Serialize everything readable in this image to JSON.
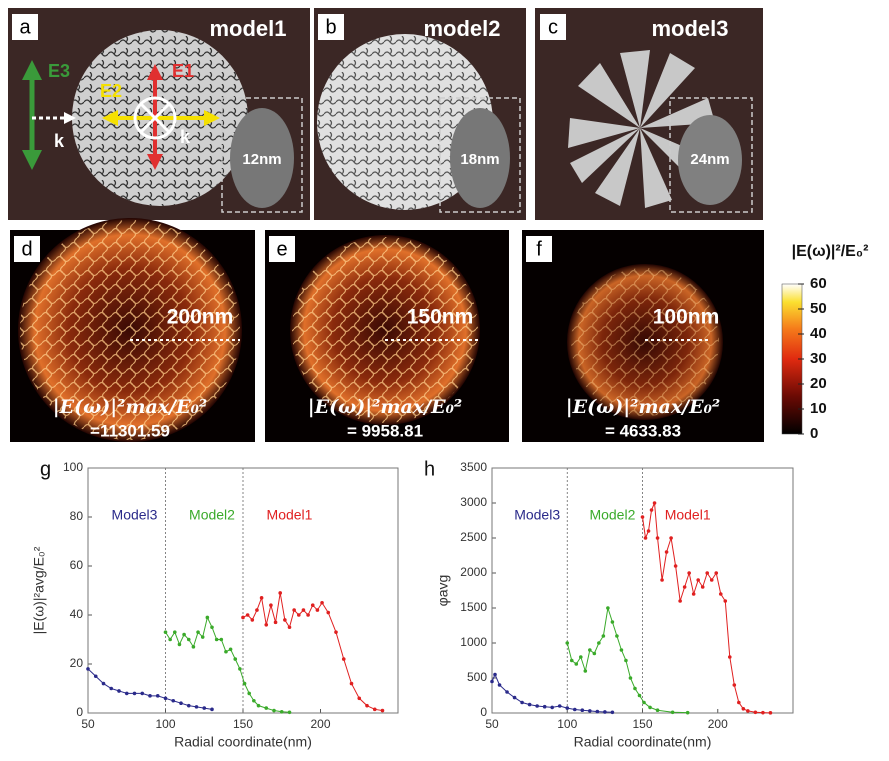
{
  "panels": [
    {
      "label": "a",
      "title": "model1",
      "inset": "12nm"
    },
    {
      "label": "b",
      "title": "model2",
      "inset": "18nm"
    },
    {
      "label": "c",
      "title": "model3",
      "inset": "24nm"
    }
  ],
  "panel_a_annotations": {
    "e3": "E3",
    "e1": "E1",
    "e2": "E2",
    "k_in": "k",
    "k_out": "k"
  },
  "field_panels": [
    {
      "label": "d",
      "scale": "200nm",
      "formula": "|E(ω)|²max/E₀²",
      "enhancement": "=11301.59"
    },
    {
      "label": "e",
      "scale": "150nm",
      "formula": "|E(ω)|²max/E₀²",
      "enhancement": "= 9958.81"
    },
    {
      "label": "f",
      "scale": "100nm",
      "formula": "|E(ω)|²max/E₀²",
      "enhancement": "= 4633.83"
    }
  ],
  "colorbar": {
    "title": "|E(ω)|²/E₀²",
    "lim": [
      0,
      60
    ],
    "ticks": [
      0,
      10,
      20,
      30,
      40,
      50,
      60
    ]
  },
  "chart_data": [
    {
      "type": "line",
      "panel": "g",
      "xlabel": "Radial coordinate(nm)",
      "ylabel": "|E(ω)|²avg/E₀²",
      "xlim": [
        50,
        250
      ],
      "ylim": [
        0,
        100
      ],
      "xticks": [
        50,
        100,
        150,
        200
      ],
      "yticks": [
        0,
        20,
        40,
        60,
        80,
        100
      ],
      "vlines": [
        100,
        150
      ],
      "series": [
        {
          "name": "Model3",
          "color": "#2a2a8a",
          "x": [
            50,
            55,
            60,
            65,
            70,
            75,
            80,
            85,
            90,
            95,
            100,
            105,
            110,
            115,
            120,
            125,
            130
          ],
          "values": [
            18,
            15,
            12,
            10,
            9,
            8,
            8,
            8,
            7,
            7,
            6,
            5,
            4,
            3,
            2.5,
            2,
            1.5
          ]
        },
        {
          "name": "Model2",
          "color": "#3aaa2a",
          "x": [
            100,
            103,
            106,
            109,
            112,
            115,
            118,
            121,
            124,
            127,
            130,
            133,
            136,
            139,
            142,
            145,
            148,
            151,
            154,
            157,
            160,
            165,
            170,
            175,
            180
          ],
          "values": [
            33,
            30,
            33,
            28,
            32,
            30,
            27,
            33,
            31,
            39,
            35,
            30,
            30,
            25,
            26,
            22,
            18,
            12,
            8,
            5,
            3,
            2,
            1,
            0.5,
            0.3
          ]
        },
        {
          "name": "Model1",
          "color": "#e02020",
          "x": [
            150,
            153,
            156,
            159,
            162,
            165,
            168,
            171,
            174,
            177,
            180,
            183,
            186,
            189,
            192,
            195,
            198,
            201,
            205,
            210,
            215,
            220,
            225,
            230,
            235,
            240
          ],
          "values": [
            39,
            40,
            38,
            42,
            47,
            36,
            44,
            37,
            49,
            38,
            35,
            42,
            40,
            42,
            40,
            44,
            42,
            45,
            41,
            33,
            22,
            12,
            6,
            3,
            1.5,
            1
          ]
        }
      ]
    },
    {
      "type": "line",
      "panel": "h",
      "xlabel": "Radial coordinate(nm)",
      "ylabel": "φavg",
      "xlim": [
        50,
        250
      ],
      "ylim": [
        0,
        3500
      ],
      "xticks": [
        50,
        100,
        150,
        200
      ],
      "yticks": [
        0,
        500,
        1000,
        1500,
        2000,
        2500,
        3000,
        3500
      ],
      "vlines": [
        100,
        150
      ],
      "series": [
        {
          "name": "Model3",
          "color": "#2a2a8a",
          "x": [
            50,
            52,
            55,
            60,
            65,
            70,
            75,
            80,
            85,
            90,
            95,
            100,
            105,
            110,
            115,
            120,
            125,
            130
          ],
          "values": [
            450,
            550,
            400,
            300,
            220,
            150,
            120,
            100,
            90,
            80,
            100,
            70,
            50,
            40,
            30,
            20,
            15,
            10
          ]
        },
        {
          "name": "Model2",
          "color": "#3aaa2a",
          "x": [
            100,
            103,
            106,
            109,
            112,
            115,
            118,
            121,
            124,
            127,
            130,
            133,
            136,
            139,
            142,
            145,
            148,
            151,
            155,
            160,
            170,
            180
          ],
          "values": [
            1000,
            750,
            700,
            800,
            600,
            900,
            850,
            1000,
            1100,
            1500,
            1300,
            1100,
            900,
            750,
            500,
            350,
            250,
            150,
            80,
            40,
            10,
            5
          ]
        },
        {
          "name": "Model1",
          "color": "#e02020",
          "x": [
            150,
            152,
            154,
            156,
            158,
            160,
            163,
            166,
            169,
            172,
            175,
            178,
            181,
            184,
            187,
            190,
            193,
            196,
            199,
            202,
            205,
            208,
            211,
            214,
            217,
            220,
            225,
            230,
            235
          ],
          "values": [
            2800,
            2500,
            2600,
            2900,
            3000,
            2500,
            1900,
            2300,
            2500,
            2100,
            1600,
            1800,
            2000,
            1700,
            1900,
            1800,
            2000,
            1900,
            2000,
            1700,
            1600,
            800,
            400,
            150,
            60,
            30,
            10,
            5,
            2
          ]
        }
      ]
    }
  ]
}
